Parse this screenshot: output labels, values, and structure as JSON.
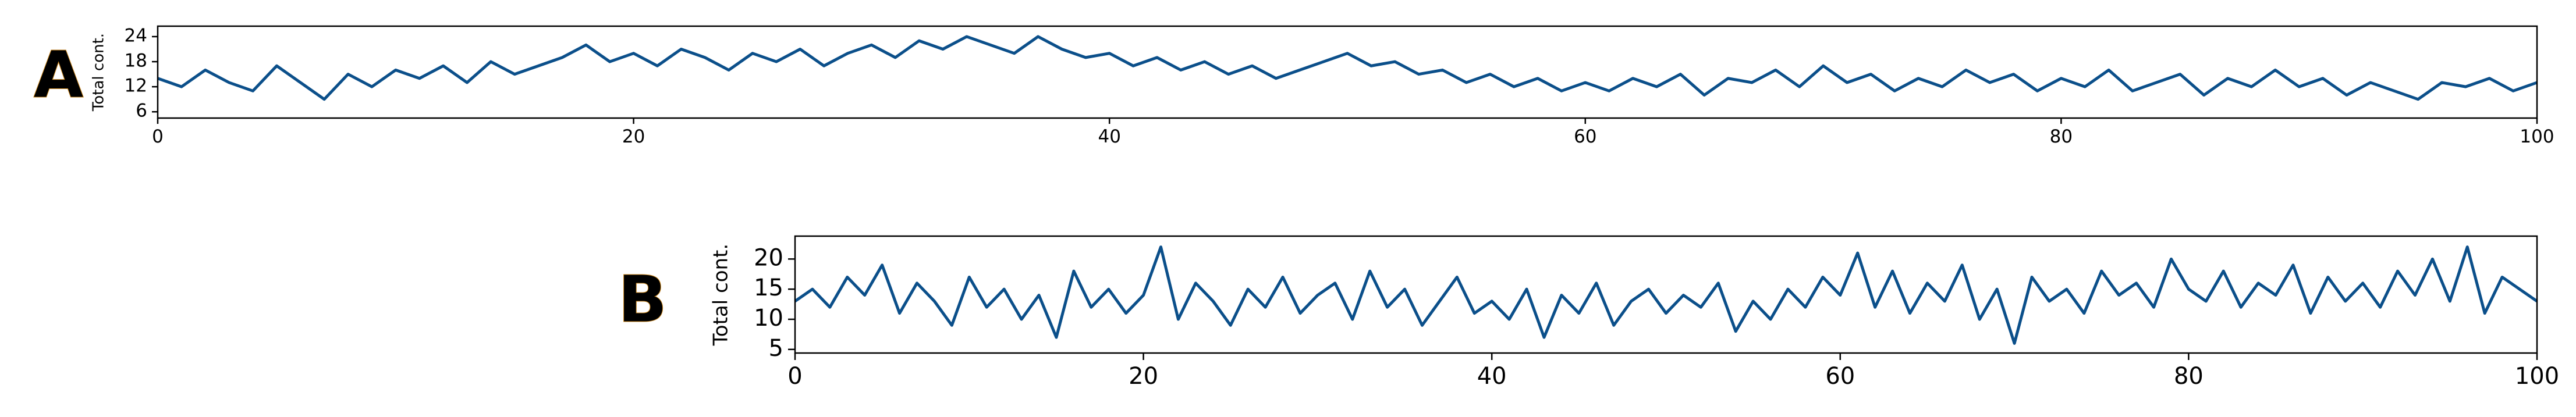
{
  "chart_data": [
    {
      "type": "line",
      "label": "A",
      "y_label": "Total cont.",
      "color": "#0b4f8a",
      "xlim": [
        0,
        100
      ],
      "xticks": [
        0,
        20,
        40,
        60,
        80,
        100
      ],
      "ylim": [
        4.5,
        26.5
      ],
      "yticks": [
        6,
        12,
        18,
        24
      ],
      "x": [
        0,
        1,
        2,
        3,
        4,
        5,
        6,
        7,
        8,
        9,
        10,
        11,
        12,
        13,
        14,
        15,
        16,
        17,
        18,
        19,
        20,
        21,
        22,
        23,
        24,
        25,
        26,
        27,
        28,
        29,
        30,
        31,
        32,
        33,
        34,
        35,
        36,
        37,
        38,
        39,
        40,
        41,
        42,
        43,
        44,
        45,
        46,
        47,
        48,
        49,
        50,
        51,
        52,
        53,
        54,
        55,
        56,
        57,
        58,
        59,
        60,
        61,
        62,
        63,
        64,
        65,
        66,
        67,
        68,
        69,
        70,
        71,
        72,
        73,
        74,
        75,
        76,
        77,
        78,
        79,
        80,
        81,
        82,
        83,
        84,
        85,
        86,
        87,
        88,
        89,
        90,
        91,
        92,
        93,
        94,
        95,
        96,
        97,
        98,
        99,
        100
      ],
      "values": [
        14,
        12,
        16,
        13,
        11,
        17,
        13,
        9,
        15,
        12,
        16,
        14,
        17,
        13,
        18,
        15,
        17,
        19,
        22,
        18,
        20,
        17,
        21,
        19,
        16,
        20,
        18,
        21,
        17,
        20,
        22,
        19,
        23,
        21,
        24,
        22,
        20,
        24,
        21,
        19,
        20,
        17,
        19,
        16,
        18,
        15,
        17,
        14,
        16,
        18,
        20,
        17,
        18,
        15,
        16,
        13,
        15,
        12,
        14,
        11,
        13,
        11,
        14,
        12,
        15,
        10,
        14,
        13,
        16,
        12,
        17,
        13,
        15,
        11,
        14,
        12,
        16,
        13,
        15,
        11,
        14,
        12,
        16,
        11,
        13,
        15,
        10,
        14,
        12,
        16,
        12,
        14,
        10,
        13,
        11,
        9,
        13,
        12,
        14,
        11,
        13
      ]
    },
    {
      "type": "line",
      "label": "B",
      "y_label": "Total cont.",
      "color": "#0b4f8a",
      "xlim": [
        0,
        100
      ],
      "xticks": [
        0,
        20,
        40,
        60,
        80,
        100
      ],
      "ylim": [
        4.4,
        23.8
      ],
      "yticks": [
        5,
        10,
        15,
        20
      ],
      "x": [
        0,
        1,
        2,
        3,
        4,
        5,
        6,
        7,
        8,
        9,
        10,
        11,
        12,
        13,
        14,
        15,
        16,
        17,
        18,
        19,
        20,
        21,
        22,
        23,
        24,
        25,
        26,
        27,
        28,
        29,
        30,
        31,
        32,
        33,
        34,
        35,
        36,
        37,
        38,
        39,
        40,
        41,
        42,
        43,
        44,
        45,
        46,
        47,
        48,
        49,
        50,
        51,
        52,
        53,
        54,
        55,
        56,
        57,
        58,
        59,
        60,
        61,
        62,
        63,
        64,
        65,
        66,
        67,
        68,
        69,
        70,
        71,
        72,
        73,
        74,
        75,
        76,
        77,
        78,
        79,
        80,
        81,
        82,
        83,
        84,
        85,
        86,
        87,
        88,
        89,
        90,
        91,
        92,
        93,
        94,
        95,
        96,
        97,
        98,
        99,
        100
      ],
      "values": [
        13,
        15,
        12,
        17,
        14,
        19,
        11,
        16,
        13,
        9,
        17,
        12,
        15,
        10,
        14,
        7,
        18,
        12,
        15,
        11,
        14,
        22,
        10,
        16,
        13,
        9,
        15,
        12,
        17,
        11,
        14,
        16,
        10,
        18,
        12,
        15,
        9,
        13,
        17,
        11,
        13,
        10,
        15,
        7,
        14,
        11,
        16,
        9,
        13,
        15,
        11,
        14,
        12,
        16,
        8,
        13,
        10,
        15,
        12,
        17,
        14,
        21,
        12,
        18,
        11,
        16,
        13,
        19,
        10,
        15,
        6,
        17,
        13,
        15,
        11,
        18,
        14,
        16,
        12,
        20,
        15,
        13,
        18,
        12,
        16,
        14,
        19,
        11,
        17,
        13,
        16,
        12,
        18,
        14,
        20,
        13,
        22,
        11,
        17,
        15,
        13
      ]
    }
  ]
}
